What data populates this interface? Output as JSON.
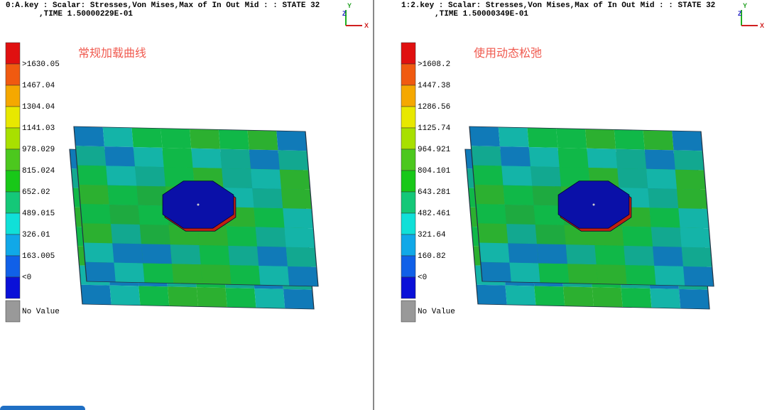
{
  "panels": [
    {
      "header": {
        "line1": "0:A.key   : Scalar: Stresses,Von Mises,Max of In Out Mid :   : STATE 32",
        "line2": ",TIME 1.50000229E-01"
      },
      "triad": {
        "x": "X",
        "y": "Y",
        "z": "Z"
      },
      "legend": [
        ">1630.05",
        "1467.04",
        "1304.04",
        "1141.03",
        "978.029",
        "815.024",
        "652.02",
        "489.015",
        "326.01",
        "163.005",
        "<0"
      ],
      "no_value": "No Value",
      "annotation": "常规加载曲线"
    },
    {
      "header": {
        "line1": "1:2.key   : Scalar: Stresses,Von Mises,Max of In Out Mid :   : STATE 32",
        "line2": ",TIME 1.50000349E-01"
      },
      "triad": {
        "x": "X",
        "y": "Y",
        "z": "Z"
      },
      "legend": [
        ">1608.2",
        "1447.38",
        "1286.56",
        "1125.74",
        "964.921",
        "804.101",
        "643.281",
        "482.461",
        "321.64",
        "160.82",
        "<0"
      ],
      "no_value": "No Value",
      "annotation": "使用动态松弛"
    }
  ]
}
